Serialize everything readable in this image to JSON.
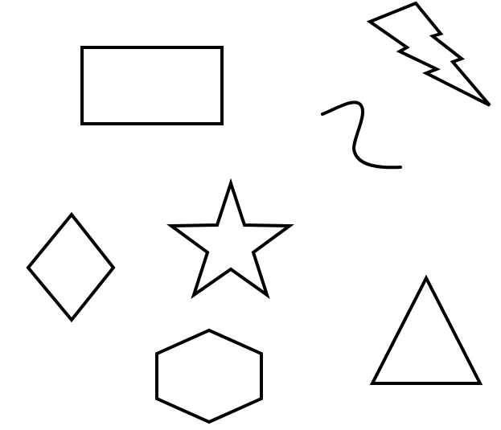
{
  "canvas": {
    "background": "#ffffff",
    "stroke_color": "#000000"
  },
  "shapes": [
    {
      "name": "rectangle"
    },
    {
      "name": "lightning-bolt"
    },
    {
      "name": "squiggle"
    },
    {
      "name": "diamond"
    },
    {
      "name": "star"
    },
    {
      "name": "triangle"
    },
    {
      "name": "hexagon"
    }
  ]
}
